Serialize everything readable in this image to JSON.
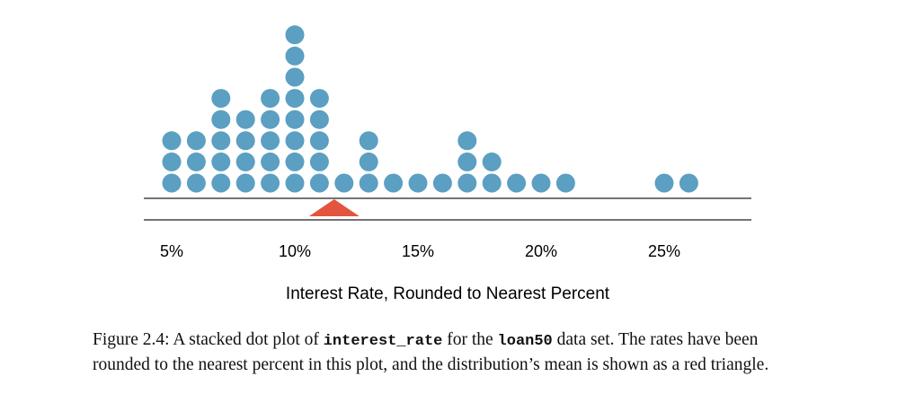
{
  "chart_data": {
    "type": "scatter",
    "subtype": "stacked-dot-plot",
    "xlabel": "Interest Rate, Rounded to Nearest Percent",
    "x_ticks": [
      5,
      10,
      15,
      20,
      25
    ],
    "x_tick_labels": [
      "5%",
      "10%",
      "15%",
      "20%",
      "25%"
    ],
    "xlim": [
      3.9,
      28.5
    ],
    "points": [
      {
        "x": 5,
        "count": 3
      },
      {
        "x": 6,
        "count": 3
      },
      {
        "x": 7,
        "count": 5
      },
      {
        "x": 8,
        "count": 4
      },
      {
        "x": 9,
        "count": 5
      },
      {
        "x": 10,
        "count": 8
      },
      {
        "x": 11,
        "count": 5
      },
      {
        "x": 12,
        "count": 1
      },
      {
        "x": 13,
        "count": 3
      },
      {
        "x": 14,
        "count": 1
      },
      {
        "x": 15,
        "count": 1
      },
      {
        "x": 16,
        "count": 1
      },
      {
        "x": 17,
        "count": 3
      },
      {
        "x": 18,
        "count": 2
      },
      {
        "x": 19,
        "count": 1
      },
      {
        "x": 20,
        "count": 1
      },
      {
        "x": 21,
        "count": 1
      },
      {
        "x": 25,
        "count": 1
      },
      {
        "x": 26,
        "count": 1
      }
    ],
    "mean": 11.6,
    "dot_color": "#5b9fc2",
    "mean_marker_color": "#e2553f",
    "grid": false
  },
  "caption": {
    "part1": "Figure 2.4:  A stacked dot plot of ",
    "code1": "interest_rate",
    "part2": " for the ",
    "code2": "loan50",
    "part3": " data set.  The rates have been rounded to the nearest percent in this plot, and the distribution’s mean is shown as a red triangle."
  }
}
